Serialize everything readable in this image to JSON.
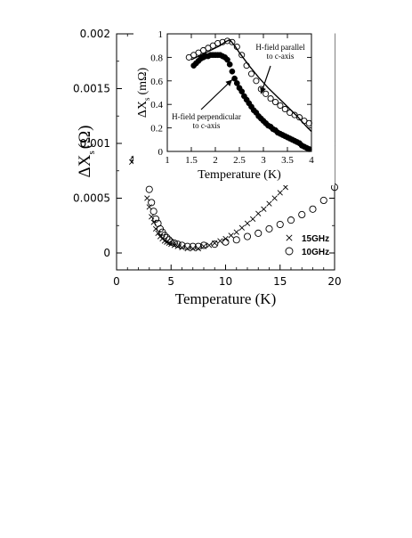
{
  "chart_data": [
    {
      "id": "main",
      "type": "scatter",
      "xlabel": "Temperature (K)",
      "ylabel_symbol": "ΔX",
      "ylabel_sub": "s",
      "ylabel_unit": "(Ω)",
      "xlim": [
        0,
        20
      ],
      "ylim": [
        0,
        0.002
      ],
      "xticks": [
        0,
        5,
        10,
        15,
        20
      ],
      "yticks": [
        0,
        0.0005,
        0.001,
        0.0015,
        0.002
      ],
      "ytick_labels": [
        "0",
        "0.0005",
        "0.001",
        "0.0015",
        "0.002"
      ],
      "grid": false,
      "legend_position": "bottom-right",
      "series": [
        {
          "name": "15GHz",
          "marker": "x",
          "points": [
            [
              1.4,
              0.00083
            ],
            [
              1.6,
              0.00086
            ],
            [
              1.8,
              0.00088
            ],
            [
              2.0,
              0.0009
            ],
            [
              2.2,
              0.00087
            ],
            [
              2.4,
              0.00077
            ],
            [
              2.6,
              0.00067
            ],
            [
              2.8,
              0.0005
            ],
            [
              3.0,
              0.00042
            ],
            [
              3.2,
              0.00033
            ],
            [
              3.4,
              0.00028
            ],
            [
              3.6,
              0.00022
            ],
            [
              3.8,
              0.00018
            ],
            [
              4.0,
              0.00015
            ],
            [
              4.2,
              0.00013
            ],
            [
              4.4,
              0.00011
            ],
            [
              4.6,
              0.0001
            ],
            [
              4.8,
              9e-05
            ],
            [
              5.0,
              8e-05
            ],
            [
              5.3,
              7e-05
            ],
            [
              5.6,
              6e-05
            ],
            [
              6.0,
              5e-05
            ],
            [
              6.5,
              4e-05
            ],
            [
              7.0,
              4e-05
            ],
            [
              7.5,
              4e-05
            ],
            [
              8.0,
              6e-05
            ],
            [
              8.5,
              7e-05
            ],
            [
              9.0,
              9e-05
            ],
            [
              9.5,
              0.00011
            ],
            [
              10.0,
              0.00013
            ],
            [
              10.5,
              0.00016
            ],
            [
              11.0,
              0.00019
            ],
            [
              11.5,
              0.00023
            ],
            [
              12.0,
              0.00027
            ],
            [
              12.5,
              0.00031
            ],
            [
              13.0,
              0.00036
            ],
            [
              13.5,
              0.0004
            ],
            [
              14.0,
              0.00045
            ],
            [
              14.5,
              0.0005
            ],
            [
              15.0,
              0.00055
            ],
            [
              15.5,
              0.0006
            ],
            [
              16.0,
              0.00065
            ],
            [
              16.5,
              0.0007
            ],
            [
              17.0,
              0.00075
            ],
            [
              17.5,
              0.0008
            ],
            [
              18.0,
              0.00084
            ],
            [
              18.5,
              0.00089
            ],
            [
              19.0,
              0.00093
            ],
            [
              19.5,
              0.00098
            ],
            [
              19.8,
              0.001
            ]
          ]
        },
        {
          "name": "10GHz",
          "marker": "o",
          "points": [
            [
              1.6,
              0.00085
            ],
            [
              1.8,
              0.00087
            ],
            [
              2.0,
              0.00091
            ],
            [
              2.2,
              0.00094
            ],
            [
              2.4,
              0.00093
            ],
            [
              2.6,
              0.00085
            ],
            [
              2.8,
              0.00072
            ],
            [
              3.0,
              0.00058
            ],
            [
              3.2,
              0.00046
            ],
            [
              3.4,
              0.00038
            ],
            [
              3.6,
              0.00031
            ],
            [
              3.8,
              0.00027
            ],
            [
              4.0,
              0.00022
            ],
            [
              4.2,
              0.00019
            ],
            [
              4.4,
              0.00016
            ],
            [
              4.6,
              0.00014
            ],
            [
              4.8,
              0.00012
            ],
            [
              5.0,
              0.0001
            ],
            [
              5.3,
              9e-05
            ],
            [
              5.6,
              8e-05
            ],
            [
              6.0,
              7e-05
            ],
            [
              6.5,
              6e-05
            ],
            [
              7.0,
              6e-05
            ],
            [
              7.5,
              6e-05
            ],
            [
              8.0,
              7e-05
            ],
            [
              9.0,
              8e-05
            ],
            [
              10.0,
              0.0001
            ],
            [
              11.0,
              0.00012
            ],
            [
              12.0,
              0.00015
            ],
            [
              13.0,
              0.00018
            ],
            [
              14.0,
              0.00022
            ],
            [
              15.0,
              0.00026
            ],
            [
              16.0,
              0.0003
            ],
            [
              17.0,
              0.00035
            ],
            [
              18.0,
              0.0004
            ],
            [
              19.0,
              0.00048
            ],
            [
              20.0,
              0.0006
            ]
          ]
        }
      ],
      "legend": [
        {
          "marker": "x",
          "label": "15GHz"
        },
        {
          "marker": "o",
          "label": "10GHz"
        }
      ]
    },
    {
      "id": "inset",
      "type": "scatter",
      "xlabel": "Temperature (K)",
      "ylabel_symbol": "ΔX",
      "ylabel_sub": "s",
      "ylabel_unit": "(mΩ)",
      "xlim": [
        1,
        4
      ],
      "ylim": [
        0,
        1
      ],
      "xticks": [
        1,
        1.5,
        2,
        2.5,
        3,
        3.5,
        4
      ],
      "yticks": [
        0,
        0.2,
        0.4,
        0.6,
        0.8,
        1
      ],
      "xtick_labels": [
        "1",
        "1.5",
        "2",
        "2.5",
        "3",
        "3.5",
        "4"
      ],
      "ytick_labels": [
        "0",
        "0.2",
        "0.4",
        "0.6",
        "0.8",
        "1"
      ],
      "grid": false,
      "annotations": [
        {
          "lines": [
            "H-field parallel",
            "to c-axis"
          ],
          "arrow_to": [
            2.95,
            0.49
          ]
        },
        {
          "lines": [
            "H-field perpendicular",
            "to c-axis"
          ],
          "arrow_to": [
            2.35,
            0.61
          ]
        }
      ],
      "series": [
        {
          "name": "H-field parallel to c-axis",
          "marker": "open-circle",
          "points": [
            [
              1.45,
              0.8
            ],
            [
              1.55,
              0.82
            ],
            [
              1.65,
              0.84
            ],
            [
              1.75,
              0.86
            ],
            [
              1.85,
              0.88
            ],
            [
              1.95,
              0.9
            ],
            [
              2.05,
              0.92
            ],
            [
              2.15,
              0.93
            ],
            [
              2.25,
              0.94
            ],
            [
              2.35,
              0.93
            ],
            [
              2.45,
              0.89
            ],
            [
              2.55,
              0.82
            ],
            [
              2.65,
              0.73
            ],
            [
              2.75,
              0.66
            ],
            [
              2.85,
              0.6
            ],
            [
              2.95,
              0.53
            ],
            [
              3.05,
              0.49
            ],
            [
              3.15,
              0.45
            ],
            [
              3.25,
              0.42
            ],
            [
              3.35,
              0.39
            ],
            [
              3.45,
              0.36
            ],
            [
              3.55,
              0.33
            ],
            [
              3.65,
              0.31
            ],
            [
              3.75,
              0.29
            ],
            [
              3.85,
              0.26
            ],
            [
              3.95,
              0.24
            ]
          ]
        },
        {
          "name": "H-field perpendicular to c-axis",
          "marker": "filled-circle",
          "points": [
            [
              1.55,
              0.73
            ],
            [
              1.6,
              0.75
            ],
            [
              1.65,
              0.77
            ],
            [
              1.7,
              0.79
            ],
            [
              1.75,
              0.8
            ],
            [
              1.8,
              0.81
            ],
            [
              1.85,
              0.81
            ],
            [
              1.9,
              0.82
            ],
            [
              1.95,
              0.82
            ],
            [
              2.0,
              0.82
            ],
            [
              2.05,
              0.82
            ],
            [
              2.1,
              0.82
            ],
            [
              2.15,
              0.81
            ],
            [
              2.2,
              0.8
            ],
            [
              2.25,
              0.78
            ],
            [
              2.3,
              0.74
            ],
            [
              2.35,
              0.68
            ],
            [
              2.4,
              0.62
            ],
            [
              2.45,
              0.58
            ],
            [
              2.5,
              0.54
            ],
            [
              2.55,
              0.51
            ],
            [
              2.6,
              0.47
            ],
            [
              2.65,
              0.44
            ],
            [
              2.7,
              0.41
            ],
            [
              2.75,
              0.38
            ],
            [
              2.8,
              0.35
            ],
            [
              2.85,
              0.33
            ],
            [
              2.9,
              0.3
            ],
            [
              2.95,
              0.28
            ],
            [
              3.0,
              0.26
            ],
            [
              3.05,
              0.24
            ],
            [
              3.1,
              0.22
            ],
            [
              3.15,
              0.21
            ],
            [
              3.2,
              0.19
            ],
            [
              3.25,
              0.18
            ],
            [
              3.3,
              0.16
            ],
            [
              3.35,
              0.15
            ],
            [
              3.4,
              0.14
            ],
            [
              3.45,
              0.13
            ],
            [
              3.5,
              0.12
            ],
            [
              3.55,
              0.11
            ],
            [
              3.6,
              0.1
            ],
            [
              3.65,
              0.09
            ],
            [
              3.7,
              0.08
            ],
            [
              3.75,
              0.07
            ],
            [
              3.8,
              0.05
            ],
            [
              3.85,
              0.04
            ],
            [
              3.9,
              0.03
            ],
            [
              3.95,
              0.02
            ]
          ]
        },
        {
          "name": "fit curve",
          "marker": "line",
          "points": [
            [
              1.5,
              0.78
            ],
            [
              1.7,
              0.82
            ],
            [
              1.9,
              0.86
            ],
            [
              2.1,
              0.9
            ],
            [
              2.2,
              0.93
            ],
            [
              2.3,
              0.95
            ],
            [
              2.4,
              0.9
            ],
            [
              2.5,
              0.84
            ],
            [
              2.7,
              0.73
            ],
            [
              2.9,
              0.63
            ],
            [
              3.1,
              0.54
            ],
            [
              3.3,
              0.46
            ],
            [
              3.5,
              0.38
            ],
            [
              3.7,
              0.3
            ],
            [
              3.9,
              0.21
            ],
            [
              4.0,
              0.17
            ]
          ]
        }
      ]
    }
  ]
}
